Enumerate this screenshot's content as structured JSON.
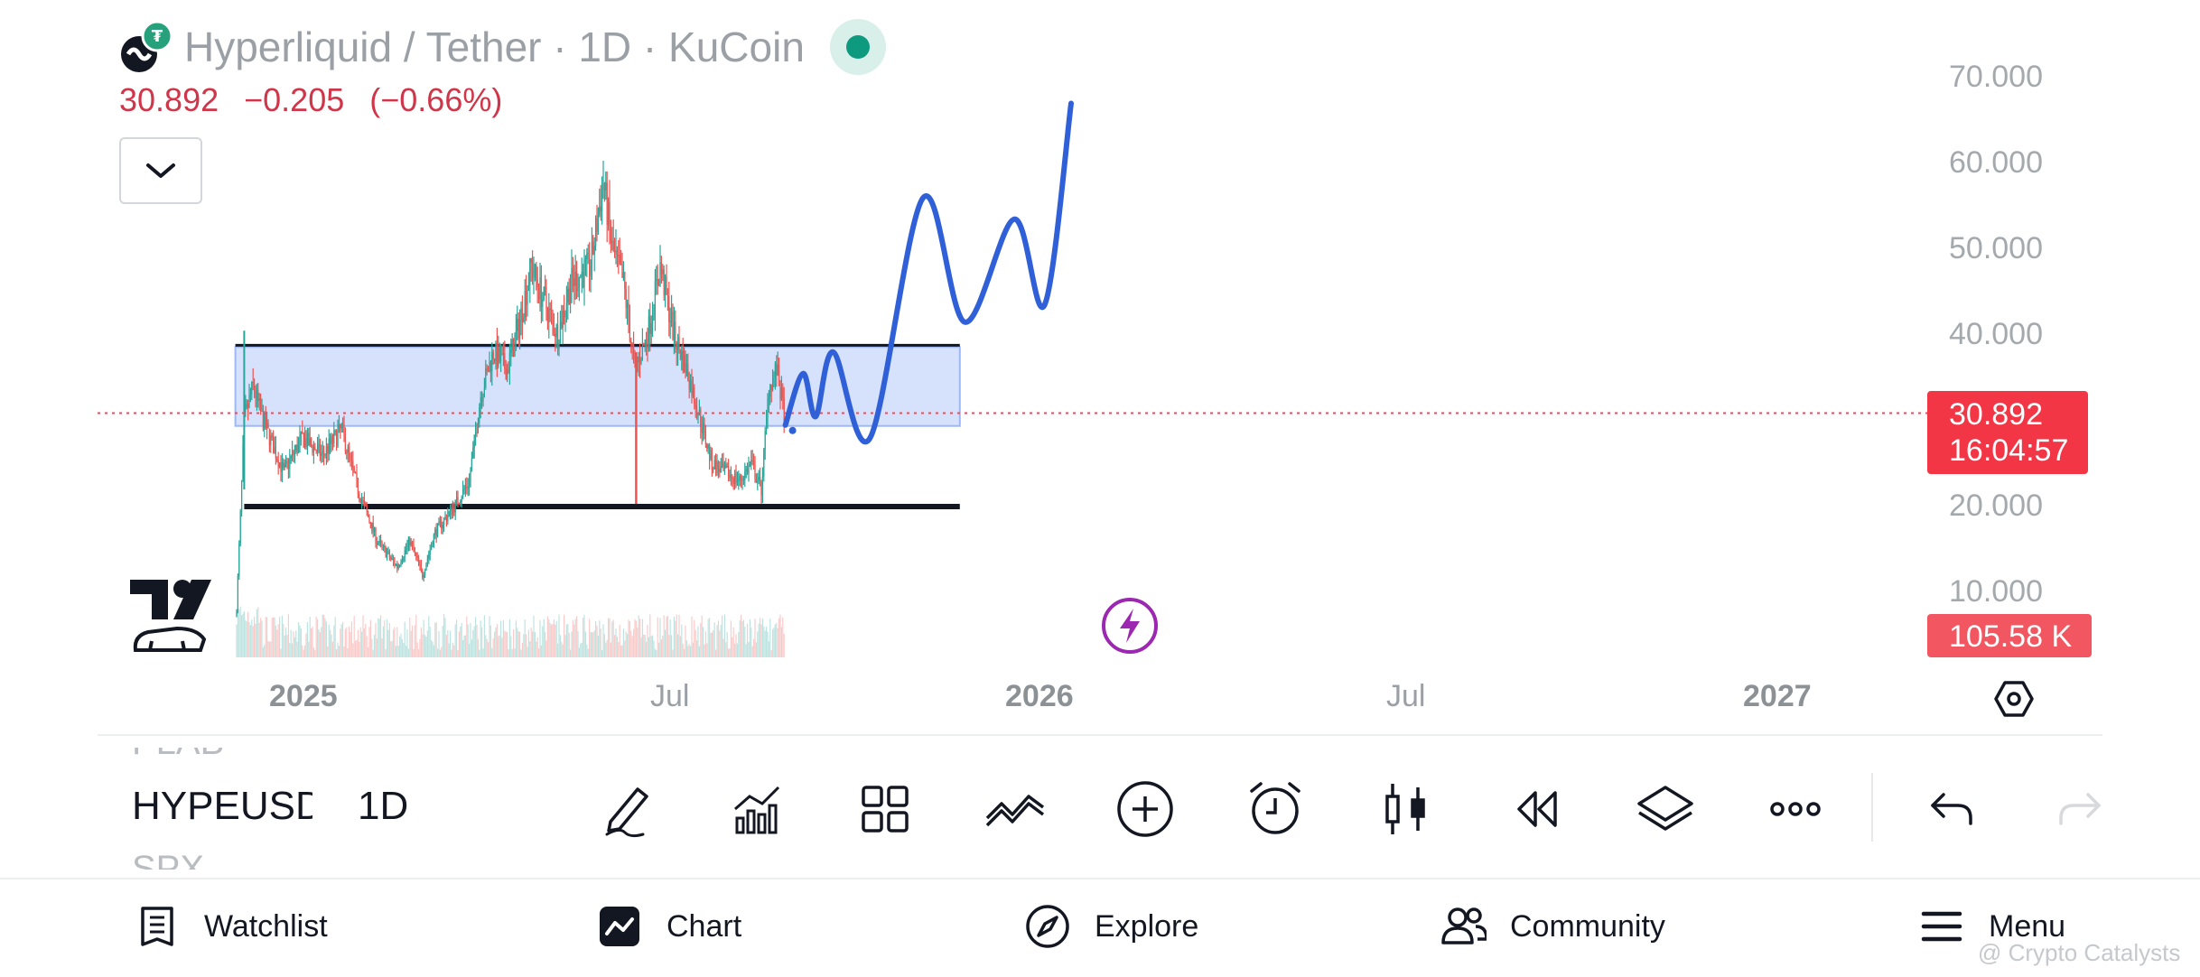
{
  "header": {
    "title": "Hyperliquid / Tether · 1D · KuCoin",
    "last_price": "30.892",
    "change": "−0.205",
    "change_pct": "(−0.66%)"
  },
  "price_axis": {
    "labels": [
      "70.000",
      "60.000",
      "50.000",
      "40.000",
      "20.000",
      "10.000"
    ],
    "current_price": "30.892",
    "countdown": "16:04:57",
    "volume": "105.58 K"
  },
  "time_axis": {
    "labels": [
      "2025",
      "Jul",
      "2026",
      "Jul",
      "2027"
    ]
  },
  "symbols": {
    "previous": "PLAB",
    "current": "HYPEUSDT",
    "next": "SPX",
    "interval": "1D"
  },
  "toolbar": {
    "icons": [
      "pencil-icon",
      "indicators-icon",
      "layouts-icon",
      "compare-icon",
      "add-icon",
      "alert-icon",
      "chart-type-icon",
      "replay-icon",
      "layers-icon",
      "more-icon",
      "undo-icon",
      "redo-icon"
    ]
  },
  "bottom_nav": {
    "watchlist": "Watchlist",
    "chart": "Chart",
    "explore": "Explore",
    "community": "Community",
    "menu": "Menu"
  },
  "watermark": "@ Crypto Catalysts",
  "colors": {
    "up": "#26a69a",
    "down": "#ef5350",
    "projection": "#3060d8",
    "zone": "#cfdcfb",
    "price_tag": "#f23645"
  },
  "chart_data": {
    "type": "candlestick",
    "symbol": "HYPEUSDT",
    "interval": "1D",
    "ylim": [
      3,
      75
    ],
    "x_range": [
      "2024-11-25",
      "2027-02-20"
    ],
    "last_price": 30.892,
    "zone": {
      "from": "2024-11-28",
      "to": "2026-06-24",
      "low": 29.4,
      "high": 38.6
    },
    "support_line": {
      "from": "2024-12-05",
      "to": "2026-06-24",
      "price": 20.0
    },
    "resistance_line": {
      "from": "2024-11-28",
      "to": "2026-06-24",
      "price": 38.8
    },
    "price_path": [
      [
        "2024-11-29",
        8
      ],
      [
        "2024-12-05",
        30
      ],
      [
        "2024-12-12",
        34
      ],
      [
        "2024-12-20",
        30
      ],
      [
        "2025-01-05",
        24
      ],
      [
        "2025-01-20",
        28
      ],
      [
        "2025-02-05",
        26
      ],
      [
        "2025-02-20",
        29
      ],
      [
        "2025-03-05",
        22
      ],
      [
        "2025-03-20",
        16
      ],
      [
        "2025-04-05",
        13
      ],
      [
        "2025-04-15",
        16
      ],
      [
        "2025-04-25",
        12
      ],
      [
        "2025-05-05",
        17
      ],
      [
        "2025-05-20",
        20
      ],
      [
        "2025-06-01",
        23
      ],
      [
        "2025-06-10",
        33
      ],
      [
        "2025-06-20",
        38
      ],
      [
        "2025-07-01",
        36
      ],
      [
        "2025-07-10",
        41
      ],
      [
        "2025-07-20",
        48
      ],
      [
        "2025-07-30",
        44
      ],
      [
        "2025-08-10",
        40
      ],
      [
        "2025-08-20",
        46
      ],
      [
        "2025-09-05",
        48
      ],
      [
        "2025-09-15",
        58
      ],
      [
        "2025-09-22",
        50
      ],
      [
        "2025-10-01",
        46
      ],
      [
        "2025-10-10",
        36
      ],
      [
        "2025-10-20",
        40
      ],
      [
        "2025-10-30",
        48
      ],
      [
        "2025-11-10",
        40
      ],
      [
        "2025-11-20",
        36
      ],
      [
        "2025-12-01",
        30
      ],
      [
        "2025-12-10",
        25
      ],
      [
        "2025-12-20",
        24
      ],
      [
        "2026-01-01",
        23
      ],
      [
        "2026-01-10",
        25
      ],
      [
        "2026-01-18",
        22
      ],
      [
        "2026-01-24",
        34
      ],
      [
        "2026-01-30",
        36
      ],
      [
        "2026-02-05",
        30.9
      ]
    ],
    "projection": [
      [
        "2026-02-06",
        29.5
      ],
      [
        "2026-02-20",
        35.5
      ],
      [
        "2026-03-02",
        30.5
      ],
      [
        "2026-03-16",
        38
      ],
      [
        "2026-04-14",
        28
      ],
      [
        "2026-05-26",
        56
      ],
      [
        "2026-06-28",
        41.5
      ],
      [
        "2026-08-06",
        53.5
      ],
      [
        "2026-08-30",
        43.5
      ],
      [
        "2026-09-20",
        67
      ]
    ]
  }
}
